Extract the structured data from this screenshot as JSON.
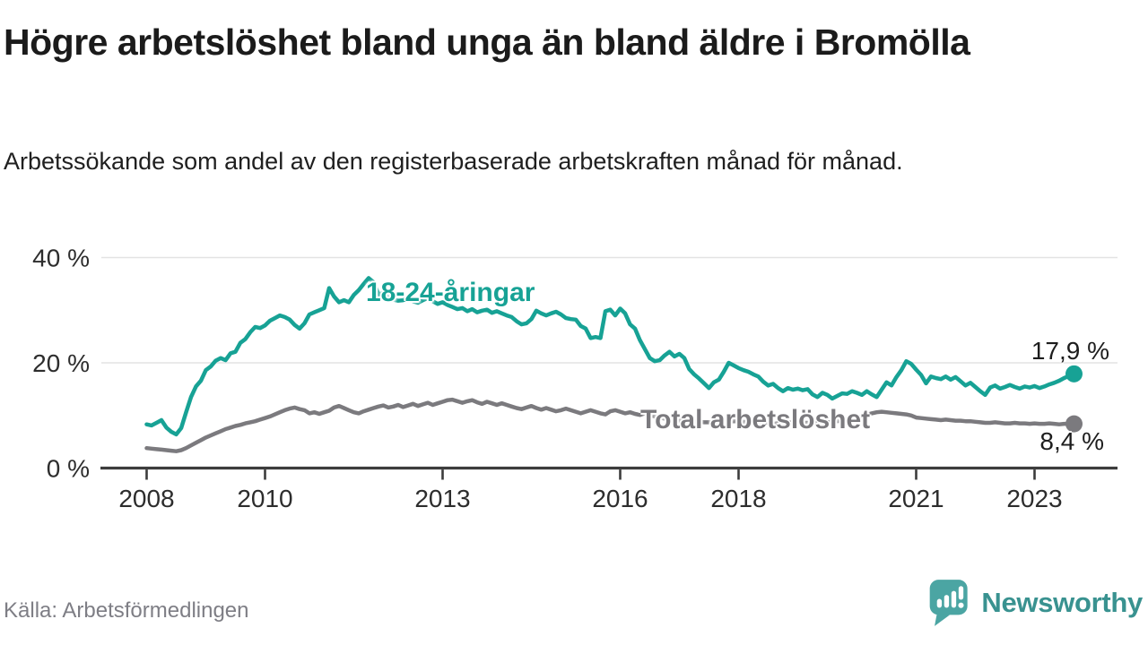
{
  "header": {
    "title": "Högre arbetslöshet bland unga än bland äldre i Bromölla",
    "subtitle": "Arbetssökande som andel av den registerbaserade arbetskraften månad för månad."
  },
  "footer": {
    "source": "Källa: Arbetsförmedlingen",
    "brand": "Newsworthy"
  },
  "colors": {
    "youth_line": "#17A295",
    "total_line": "#7B7A7E",
    "axis": "#3c3c3c",
    "gridline": "#e3e3e3",
    "brand_teal": "#4BA5A3",
    "brand_text": "#399290"
  },
  "chart_data": {
    "type": "line",
    "title": "Högre arbetslöshet bland unga än bland äldre i Bromölla",
    "subtitle": "Arbetssökande som andel av den registerbaserade arbetskraften månad för månad.",
    "x_start": "2008-01",
    "x_end": "2023-09",
    "x_step": "1 month",
    "ylim": [
      0,
      42
    ],
    "grid": "horizontal",
    "y_axis": {
      "ticks": [
        {
          "value": 0,
          "label": "0 %"
        },
        {
          "value": 20,
          "label": "20 %"
        },
        {
          "value": 40,
          "label": "40 %"
        }
      ],
      "gridline_values": [
        20,
        40
      ]
    },
    "x_axis": {
      "ticks": [
        {
          "year": 2008,
          "label": "2008"
        },
        {
          "year": 2010,
          "label": "2010"
        },
        {
          "year": 2013,
          "label": "2013"
        },
        {
          "year": 2016,
          "label": "2016"
        },
        {
          "year": 2018,
          "label": "2018"
        },
        {
          "year": 2021,
          "label": "2021"
        },
        {
          "year": 2023,
          "label": "2023"
        }
      ]
    },
    "series": [
      {
        "id": "youth",
        "name": "18-24-åringar",
        "color": "#17A295",
        "end_label": "17,9 %",
        "end_value": 17.9,
        "values": [
          8.3,
          8.1,
          8.6,
          9.1,
          7.7,
          6.9,
          6.4,
          7.6,
          10.6,
          13.5,
          15.5,
          16.6,
          18.6,
          19.3,
          20.4,
          20.9,
          20.5,
          21.8,
          22.1,
          23.8,
          24.5,
          25.8,
          26.8,
          26.6,
          27.1,
          28.0,
          28.5,
          29.0,
          28.7,
          28.2,
          27.2,
          26.5,
          27.5,
          29.2,
          29.6,
          30.0,
          30.4,
          34.2,
          32.6,
          31.5,
          31.9,
          31.5,
          32.9,
          33.8,
          35.0,
          36.1,
          35.3,
          33.0,
          33.3,
          32.4,
          32.0,
          31.8,
          31.9,
          32.3,
          31.7,
          31.4,
          31.9,
          32.3,
          31.7,
          31.2,
          31.5,
          31.0,
          30.6,
          30.2,
          30.4,
          29.8,
          30.2,
          29.6,
          29.9,
          30.1,
          29.5,
          29.8,
          29.4,
          29.0,
          28.7,
          27.9,
          27.3,
          27.5,
          28.3,
          29.9,
          29.4,
          29.0,
          29.4,
          29.7,
          29.2,
          28.5,
          28.3,
          28.2,
          27.0,
          26.5,
          24.7,
          24.9,
          24.7,
          29.8,
          30.1,
          29.0,
          30.3,
          29.4,
          27.3,
          26.5,
          24.3,
          22.6,
          20.9,
          20.3,
          20.5,
          21.4,
          22.1,
          21.2,
          21.7,
          20.9,
          18.8,
          17.8,
          17.0,
          16.1,
          15.2,
          16.3,
          16.8,
          18.3,
          20.0,
          19.5,
          19.0,
          18.6,
          18.3,
          17.8,
          17.4,
          16.4,
          15.7,
          16.0,
          15.2,
          14.6,
          15.2,
          14.9,
          15.1,
          14.8,
          15.0,
          14.0,
          13.5,
          14.3,
          13.9,
          13.2,
          13.7,
          14.2,
          14.1,
          14.6,
          14.3,
          13.9,
          14.6,
          14.0,
          13.5,
          14.9,
          16.3,
          15.7,
          17.3,
          18.6,
          20.3,
          19.8,
          18.7,
          17.7,
          16.1,
          17.4,
          17.1,
          16.9,
          17.4,
          16.8,
          17.3,
          16.5,
          15.7,
          16.2,
          15.4,
          14.6,
          13.9,
          15.3,
          15.7,
          15.1,
          15.4,
          15.8,
          15.4,
          15.1,
          15.5,
          15.3,
          15.6,
          15.2,
          15.5,
          15.9,
          16.2,
          16.6,
          17.1,
          17.5,
          17.9
        ]
      },
      {
        "id": "total",
        "name": "Total arbetslöshet",
        "color": "#7B7A7E",
        "end_label": "8,4 %",
        "end_value": 8.4,
        "values": [
          3.8,
          3.7,
          3.6,
          3.5,
          3.4,
          3.3,
          3.2,
          3.4,
          3.8,
          4.3,
          4.8,
          5.3,
          5.8,
          6.2,
          6.6,
          7.0,
          7.4,
          7.7,
          8.0,
          8.2,
          8.5,
          8.7,
          8.9,
          9.2,
          9.5,
          9.8,
          10.2,
          10.6,
          11.0,
          11.3,
          11.5,
          11.2,
          11.0,
          10.4,
          10.6,
          10.3,
          10.6,
          10.9,
          11.5,
          11.8,
          11.4,
          11.0,
          10.6,
          10.4,
          10.8,
          11.1,
          11.4,
          11.7,
          11.9,
          11.5,
          11.7,
          12.0,
          11.6,
          11.9,
          12.2,
          11.8,
          12.1,
          12.4,
          12.0,
          12.3,
          12.6,
          12.9,
          13.0,
          12.7,
          12.4,
          12.7,
          12.9,
          12.5,
          12.2,
          12.6,
          12.3,
          12.0,
          12.3,
          12.0,
          11.7,
          11.4,
          11.2,
          11.5,
          11.8,
          11.4,
          11.1,
          11.4,
          11.1,
          10.8,
          11.0,
          11.3,
          11.0,
          10.7,
          10.4,
          10.7,
          11.0,
          10.7,
          10.4,
          10.2,
          10.8,
          11.0,
          10.7,
          10.4,
          10.6,
          10.3,
          10.1,
          10.4,
          10.1,
          9.8,
          9.6,
          9.4,
          9.2,
          9.1,
          9.0,
          8.9,
          8.9,
          8.8,
          8.8,
          8.7,
          8.7,
          8.6,
          8.7,
          8.8,
          8.8,
          8.9,
          8.9,
          8.8,
          8.7,
          8.6,
          8.6,
          8.5,
          8.5,
          8.4,
          8.5,
          8.6,
          8.6,
          8.7,
          8.7,
          8.6,
          8.6,
          8.5,
          8.5,
          8.6,
          8.7,
          8.8,
          8.9,
          9.0,
          9.2,
          9.4,
          9.6,
          9.8,
          10.1,
          10.4,
          10.6,
          10.7,
          10.6,
          10.5,
          10.4,
          10.3,
          10.2,
          10.0,
          9.6,
          9.5,
          9.4,
          9.3,
          9.2,
          9.1,
          9.2,
          9.1,
          9.0,
          9.0,
          8.9,
          8.9,
          8.8,
          8.7,
          8.6,
          8.6,
          8.7,
          8.6,
          8.5,
          8.5,
          8.6,
          8.5,
          8.5,
          8.4,
          8.5,
          8.4,
          8.4,
          8.5,
          8.4,
          8.3,
          8.4,
          8.4,
          8.4
        ]
      }
    ],
    "legend_position": "inline-on-chart"
  }
}
